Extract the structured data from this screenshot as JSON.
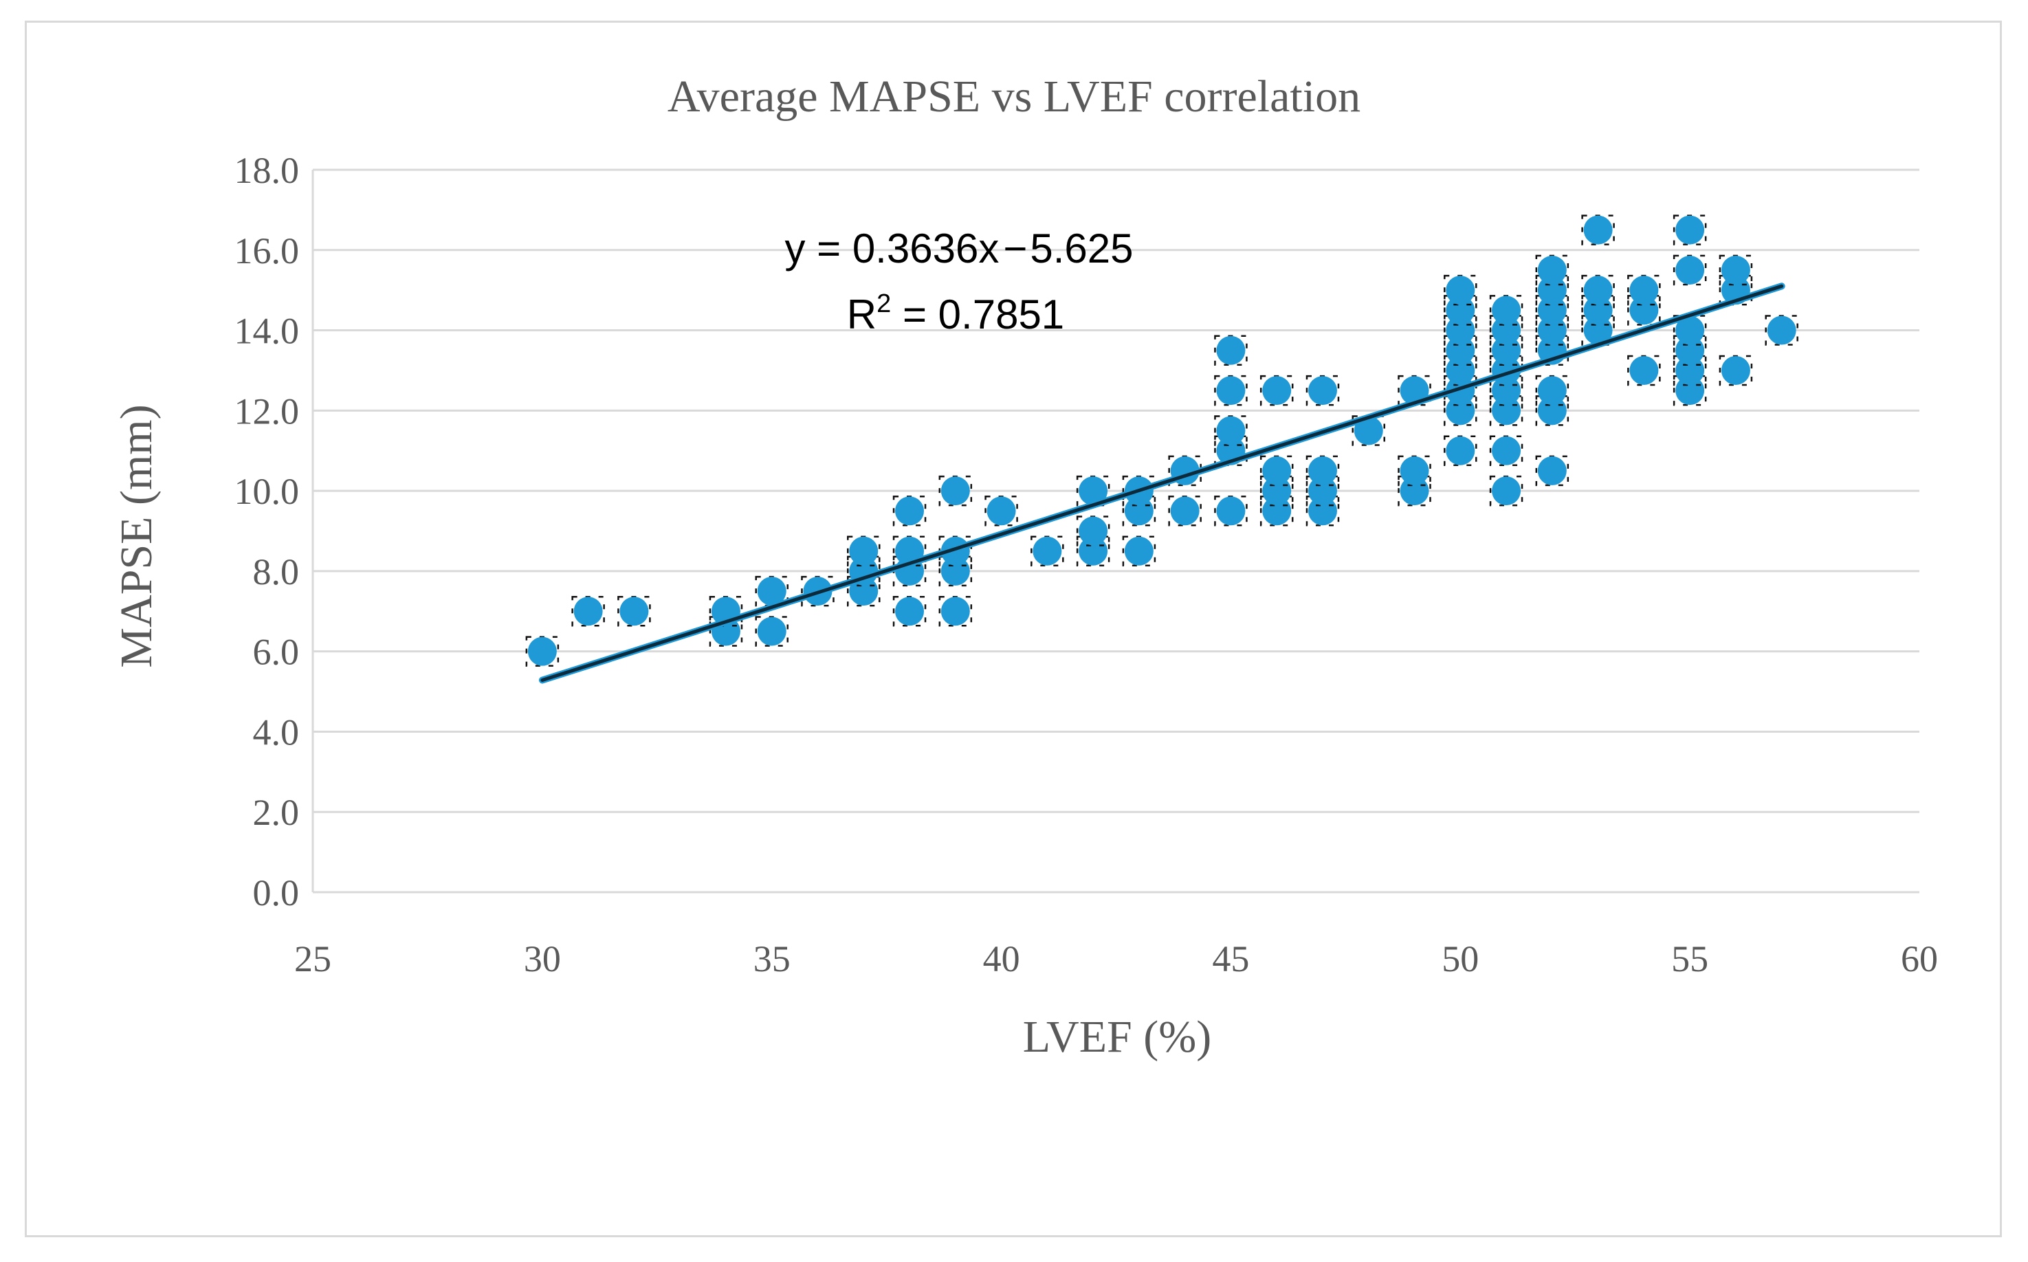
{
  "chart_data": {
    "type": "scatter",
    "title": "Average MAPSE vs LVEF correlation",
    "xlabel": "LVEF (%)",
    "ylabel": "MAPSE (mm)",
    "xlim": [
      25,
      60
    ],
    "ylim": [
      0,
      18
    ],
    "x_ticks": [
      "25",
      "30",
      "35",
      "40",
      "45",
      "50",
      "55",
      "60"
    ],
    "y_ticks": [
      "0.0",
      "2.0",
      "4.0",
      "6.0",
      "8.0",
      "10.0",
      "12.0",
      "14.0",
      "16.0",
      "18.0"
    ],
    "grid": true,
    "marker_color": "#1f9ad6",
    "trendline_color": "#0b2a3c",
    "trendline": {
      "slope": 0.3636,
      "intercept": -5.625,
      "x_range": [
        30,
        57
      ]
    },
    "equation": {
      "prefix": "y = 0.3636x",
      "minus": "−",
      "suffix": "5.625"
    },
    "r_squared": {
      "label": "R",
      "sup": "2",
      "value": " = 0.7851"
    },
    "points": [
      [
        30,
        6.0
      ],
      [
        31,
        7.0
      ],
      [
        32,
        7.0
      ],
      [
        34,
        6.5
      ],
      [
        34,
        7.0
      ],
      [
        35,
        6.5
      ],
      [
        35,
        7.5
      ],
      [
        36,
        7.5
      ],
      [
        37,
        7.5
      ],
      [
        37,
        8.0
      ],
      [
        37,
        8.5
      ],
      [
        38,
        7.0
      ],
      [
        38,
        8.0
      ],
      [
        38,
        8.5
      ],
      [
        38,
        9.5
      ],
      [
        39,
        7.0
      ],
      [
        39,
        8.0
      ],
      [
        39,
        8.5
      ],
      [
        39,
        10.0
      ],
      [
        40,
        9.5
      ],
      [
        41,
        8.5
      ],
      [
        42,
        8.5
      ],
      [
        42,
        9.0
      ],
      [
        42,
        10.0
      ],
      [
        43,
        8.5
      ],
      [
        43,
        9.5
      ],
      [
        43,
        10.0
      ],
      [
        44,
        9.5
      ],
      [
        44,
        10.5
      ],
      [
        45,
        9.5
      ],
      [
        45,
        11.0
      ],
      [
        45,
        11.5
      ],
      [
        45,
        12.5
      ],
      [
        45,
        13.5
      ],
      [
        46,
        9.5
      ],
      [
        46,
        10.0
      ],
      [
        46,
        10.5
      ],
      [
        46,
        12.5
      ],
      [
        47,
        9.5
      ],
      [
        47,
        10.0
      ],
      [
        47,
        10.5
      ],
      [
        47,
        12.5
      ],
      [
        48,
        11.5
      ],
      [
        49,
        10.0
      ],
      [
        49,
        10.5
      ],
      [
        49,
        12.5
      ],
      [
        50,
        11.0
      ],
      [
        50,
        12.0
      ],
      [
        50,
        12.5
      ],
      [
        50,
        13.0
      ],
      [
        50,
        13.5
      ],
      [
        50,
        14.0
      ],
      [
        50,
        14.5
      ],
      [
        50,
        15.0
      ],
      [
        51,
        10.0
      ],
      [
        51,
        11.0
      ],
      [
        51,
        12.0
      ],
      [
        51,
        12.5
      ],
      [
        51,
        13.0
      ],
      [
        51,
        13.5
      ],
      [
        51,
        14.0
      ],
      [
        51,
        14.5
      ],
      [
        52,
        10.5
      ],
      [
        52,
        12.0
      ],
      [
        52,
        12.5
      ],
      [
        52,
        13.5
      ],
      [
        52,
        14.0
      ],
      [
        52,
        14.5
      ],
      [
        52,
        15.0
      ],
      [
        52,
        15.5
      ],
      [
        53,
        14.0
      ],
      [
        53,
        14.5
      ],
      [
        53,
        15.0
      ],
      [
        53,
        16.5
      ],
      [
        54,
        13.0
      ],
      [
        54,
        14.5
      ],
      [
        54,
        15.0
      ],
      [
        55,
        12.5
      ],
      [
        55,
        13.0
      ],
      [
        55,
        13.5
      ],
      [
        55,
        14.0
      ],
      [
        55,
        15.5
      ],
      [
        55,
        16.5
      ],
      [
        56,
        13.0
      ],
      [
        56,
        15.0
      ],
      [
        56,
        15.5
      ],
      [
        57,
        14.0
      ]
    ]
  }
}
